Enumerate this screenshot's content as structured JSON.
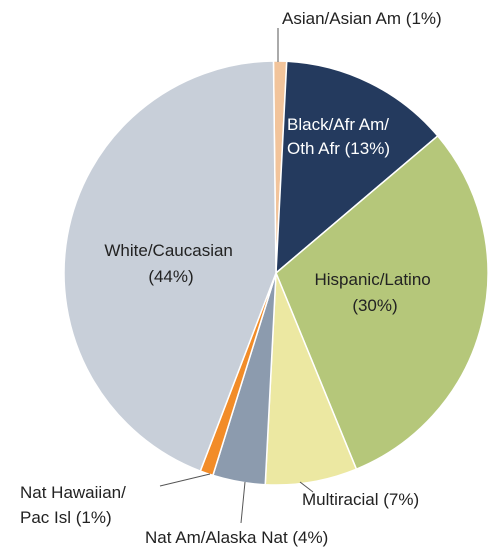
{
  "chart_data": {
    "type": "pie",
    "title": "",
    "slices": [
      {
        "label": "Asian/Asian Am (1%)",
        "value": 1,
        "color": "#f2c49b"
      },
      {
        "label": "Black/Afr Am/ Oth Afr (13%)",
        "value": 13,
        "color": "#243a5e"
      },
      {
        "label": "Hispanic/Latino (30%)",
        "value": 30,
        "color": "#b5c77a"
      },
      {
        "label": "Multiracial (7%)",
        "value": 7,
        "color": "#ece8a2"
      },
      {
        "label": "Nat Am/Alaska Nat (4%)",
        "value": 4,
        "color": "#8c9bae"
      },
      {
        "label": "Nat Hawaiian/ Pac Isl (1%)",
        "value": 1,
        "color": "#f28c28"
      },
      {
        "label": "White/Caucasian (44%)",
        "value": 44,
        "color": "#c8cfd9"
      }
    ],
    "labels": {
      "asian": [
        "Asian/Asian Am (1%)"
      ],
      "black": [
        "Black/Afr Am/",
        "Oth Afr (13%)"
      ],
      "hispanic": [
        "Hispanic/Latino",
        "(30%)"
      ],
      "multiracial": [
        "Multiracial (7%)"
      ],
      "natam": [
        "Nat Am/Alaska Nat (4%)"
      ],
      "nathawaiian": [
        "Nat Hawaiian/",
        "Pac Isl (1%)"
      ],
      "white": [
        "White/Caucasian",
        "(44%)"
      ]
    }
  }
}
